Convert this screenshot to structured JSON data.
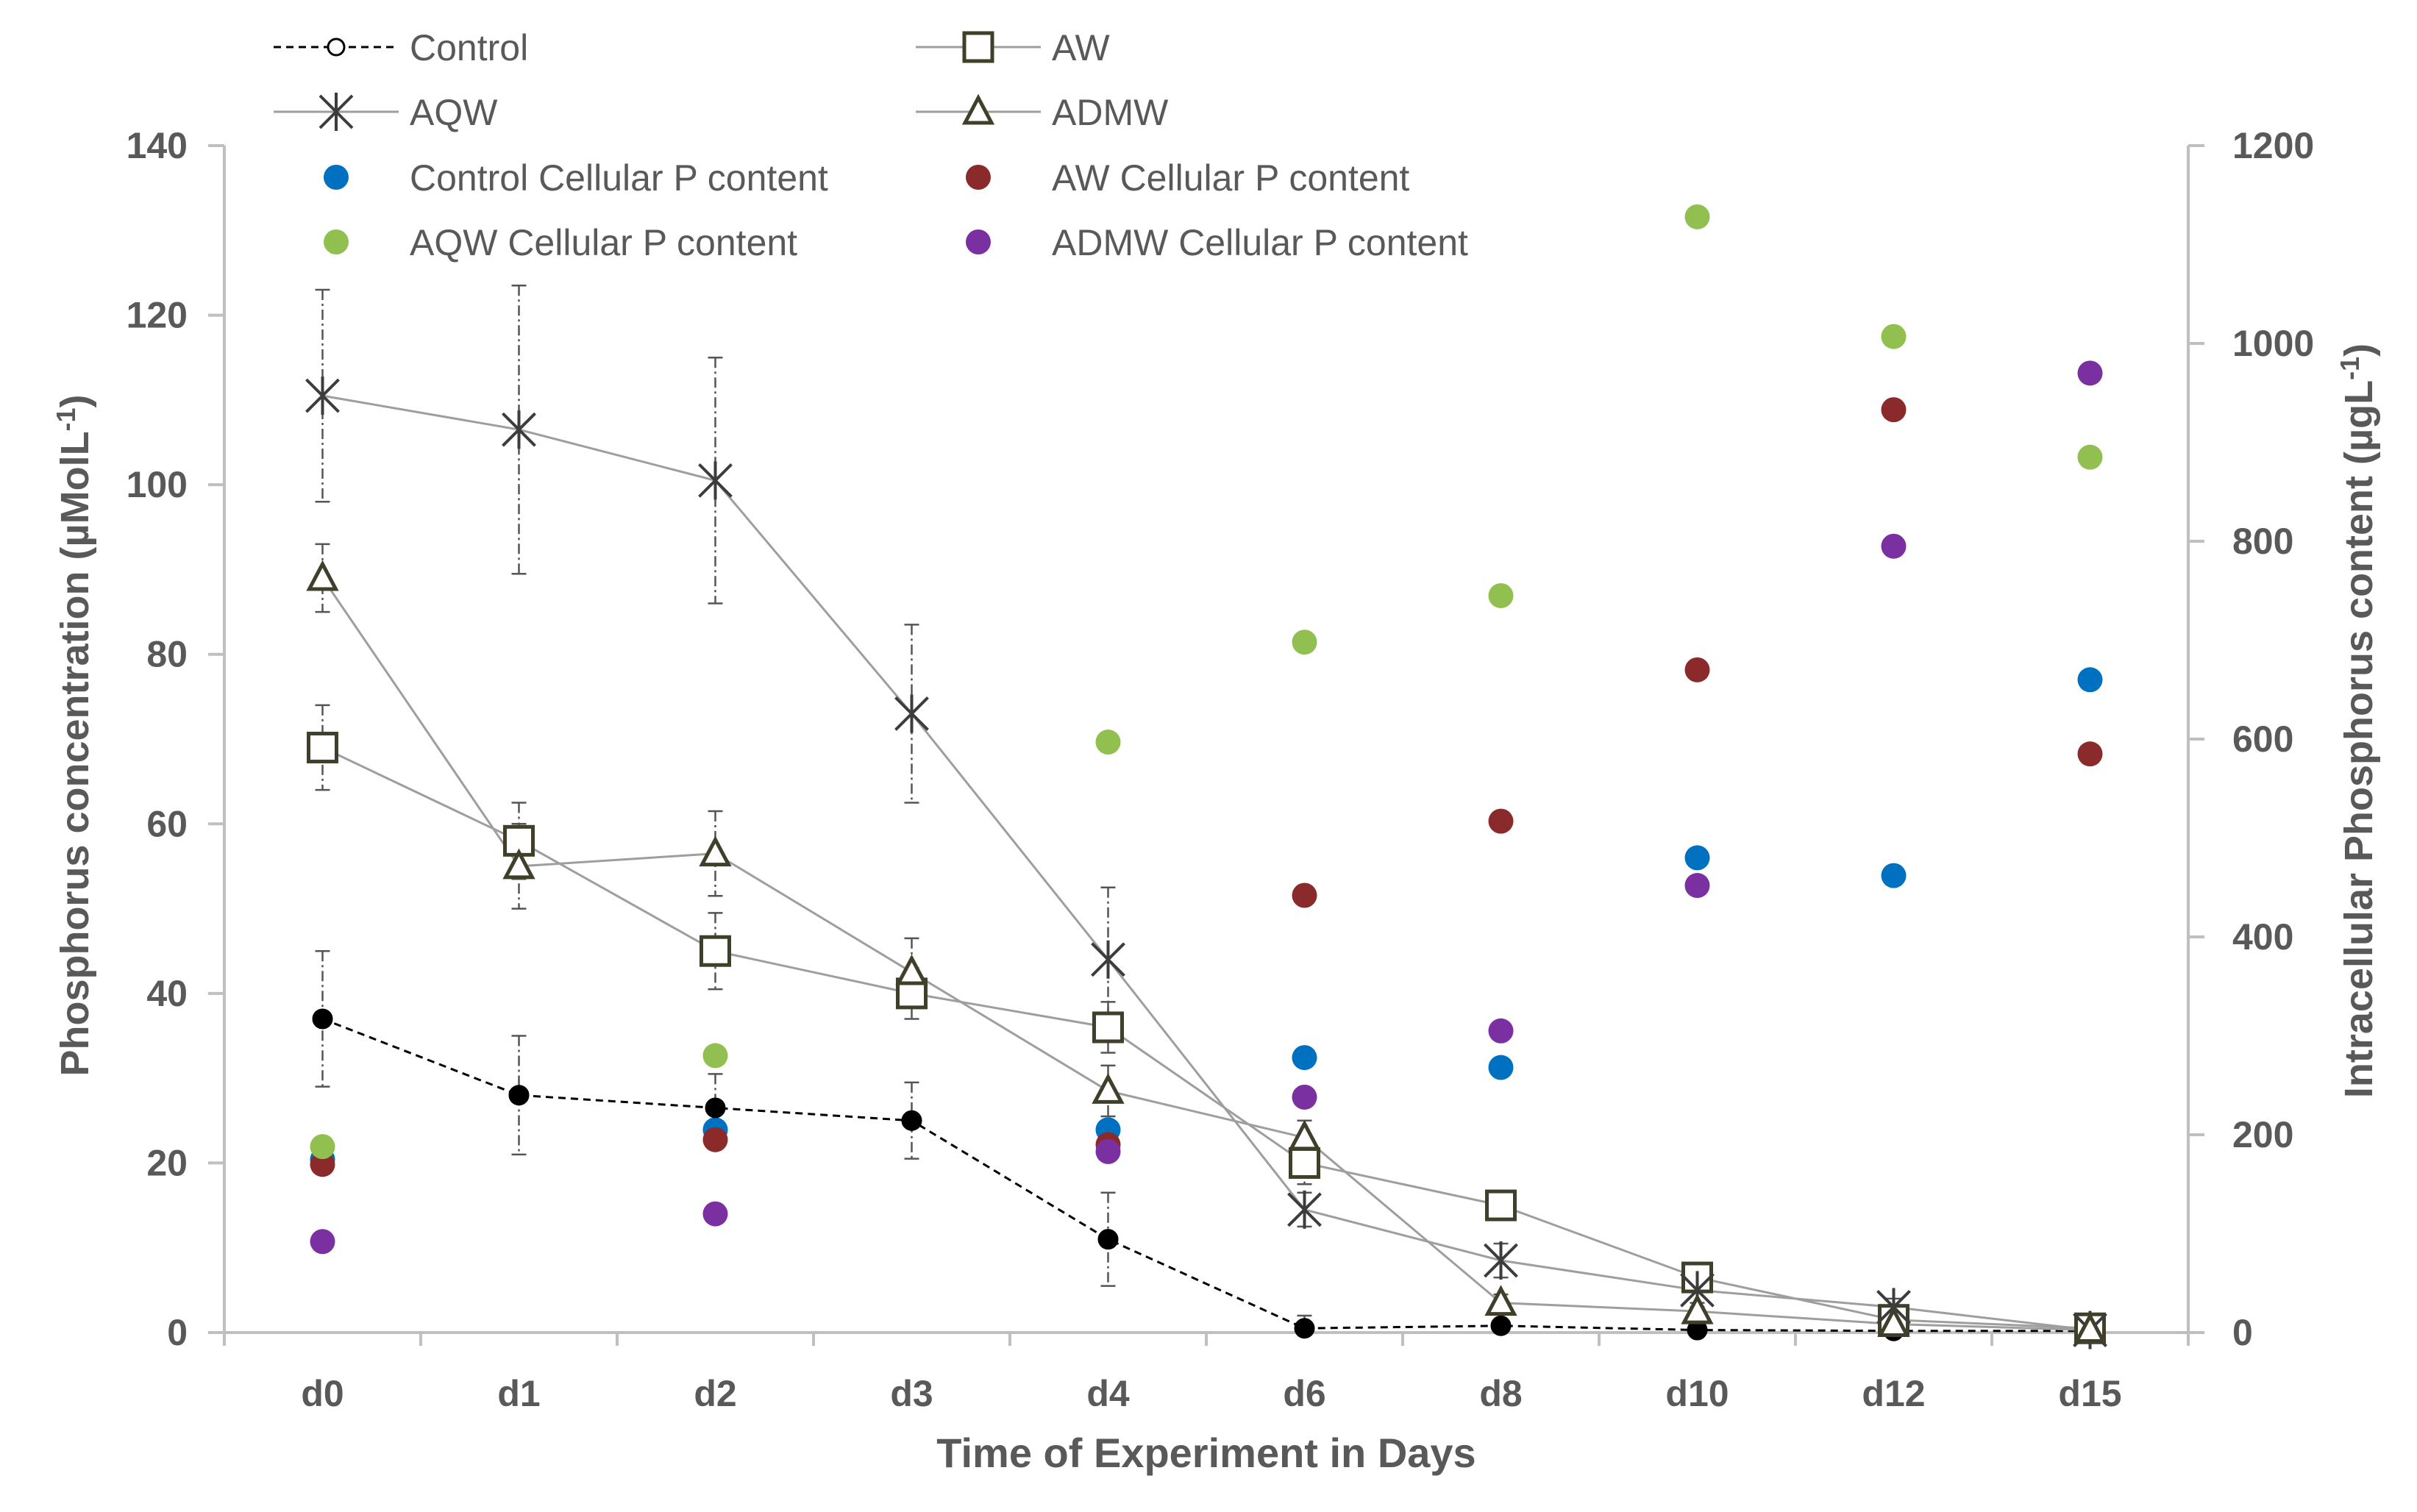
{
  "chart_data": {
    "type": "line",
    "title": "",
    "xlabel": "Time of Experiment in Days",
    "ylabel_left": "Phosphorus concentration (µMolL",
    "ylabel_left_sup": "-1",
    "ylabel_left_end": ")",
    "ylabel_right": "Intracellular Phosphorus content (µgL",
    "ylabel_right_sup": "-1",
    "ylabel_right_end": ")",
    "categories": [
      "d0",
      "d1",
      "d2",
      "d3",
      "d4",
      "d6",
      "d8",
      "d10",
      "d12",
      "d15"
    ],
    "ylim_left": [
      0,
      140
    ],
    "yticks_left": [
      0,
      20,
      40,
      60,
      80,
      100,
      120,
      140
    ],
    "ylim_right": [
      0,
      1200
    ],
    "yticks_right": [
      0,
      200,
      400,
      600,
      800,
      1000,
      1200
    ],
    "grid": false,
    "legend_position": "top",
    "series": [
      {
        "name": "Control",
        "axis": "left",
        "marker": "circle",
        "line_style": "dashed",
        "values": [
          37,
          28,
          26.5,
          25,
          11,
          0.5,
          0.8,
          0.3,
          0.2,
          0.2
        ],
        "errors": [
          8,
          7,
          4,
          4.5,
          5.5,
          1.5,
          0.5,
          0.3,
          0.3,
          0.3
        ]
      },
      {
        "name": "AW",
        "axis": "left",
        "marker": "square",
        "line_style": "solid",
        "values": [
          69,
          58,
          45,
          40,
          36,
          20,
          15,
          6.5,
          1.5,
          0.5
        ],
        "errors": [
          5,
          4.5,
          4.5,
          3,
          3,
          2.5,
          1.5,
          1,
          1,
          0.5
        ]
      },
      {
        "name": "AQW",
        "axis": "left",
        "marker": "asterisk",
        "line_style": "solid",
        "values": [
          110.5,
          106.5,
          100.5,
          73,
          44,
          14.5,
          8.5,
          5,
          3,
          0.3
        ],
        "errors": [
          12.5,
          17,
          14.5,
          10.5,
          8.5,
          2,
          2,
          1.5,
          1,
          0.3
        ]
      },
      {
        "name": "ADMW",
        "axis": "left",
        "marker": "triangle",
        "line_style": "solid",
        "values": [
          89,
          55,
          56.5,
          42.5,
          28.5,
          23,
          3.5,
          2.5,
          1,
          0.3
        ],
        "errors": [
          4,
          5,
          5,
          4,
          3,
          2,
          1,
          0.5,
          0.5,
          0.3
        ]
      },
      {
        "name": "Control Cellular P content",
        "axis": "right",
        "marker": "dot",
        "color": "#0070C0",
        "values": [
          175,
          null,
          205,
          null,
          205,
          278,
          268,
          480,
          462,
          660
        ]
      },
      {
        "name": "AW Cellular P content",
        "axis": "right",
        "marker": "dot",
        "color": "#8B2A2A",
        "values": [
          170,
          null,
          195,
          null,
          190,
          442,
          517,
          670,
          933,
          585
        ]
      },
      {
        "name": "AQW Cellular P content",
        "axis": "right",
        "marker": "dot",
        "color": "#92C050",
        "values": [
          188,
          null,
          280,
          null,
          597,
          698,
          745,
          1128,
          1007,
          885
        ]
      },
      {
        "name": "ADMW Cellular P content",
        "axis": "right",
        "marker": "dot",
        "color": "#7A30A0",
        "values": [
          92,
          null,
          120,
          null,
          183,
          238,
          305,
          452,
          795,
          970
        ]
      }
    ]
  }
}
